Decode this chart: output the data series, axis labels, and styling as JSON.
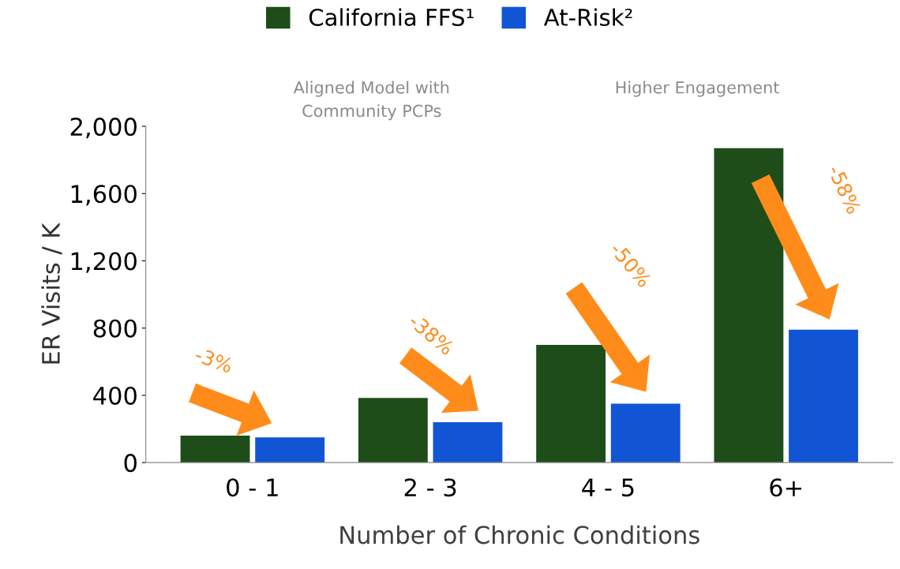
{
  "chart_data": {
    "type": "bar",
    "categories": [
      "0 - 1",
      "2 - 3",
      "4 - 5",
      "6+"
    ],
    "series": [
      {
        "name": "California FFS¹",
        "color": "#1e4d1a",
        "values": [
          160,
          385,
          700,
          1870
        ]
      },
      {
        "name": "At-Risk²",
        "color": "#1155d4",
        "values": [
          150,
          240,
          350,
          790
        ]
      }
    ],
    "xlabel": "Number of Chronic Conditions",
    "ylabel": "ER Visits / K",
    "ylim": [
      0,
      2000
    ],
    "yticks": [
      {
        "value": 0,
        "label": "0"
      },
      {
        "value": 400,
        "label": "400"
      },
      {
        "value": 800,
        "label": "800"
      },
      {
        "value": 1200,
        "label": "1,200"
      },
      {
        "value": 1600,
        "label": "1,600"
      },
      {
        "value": 2000,
        "label": "2,000"
      }
    ],
    "annotations": [
      "Aligned Model with\nCommunity PCPs",
      "Higher Engagement",
      "-3%",
      "-38%",
      "-50%",
      "-58%"
    ],
    "grid": false,
    "legend": "top"
  }
}
